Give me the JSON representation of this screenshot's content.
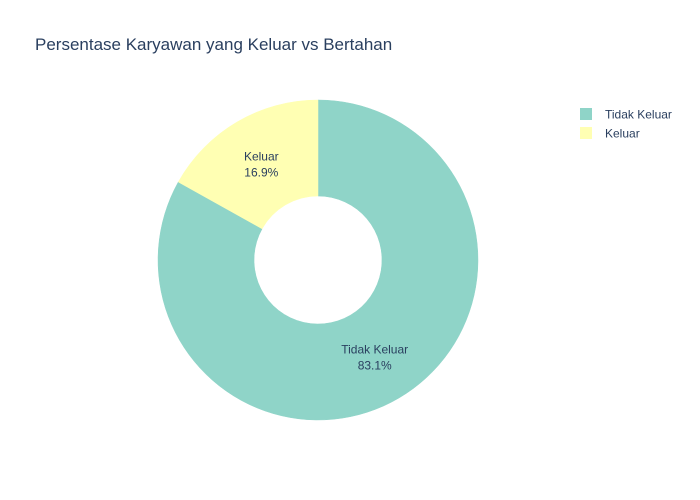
{
  "chart_data": {
    "type": "pie",
    "title": "Persentase Karyawan yang Keluar vs Bertahan",
    "hole": 0.4,
    "start_angle_deg": 0,
    "direction": "clockwise",
    "legend_position": "top-right",
    "slices": [
      {
        "label": "Tidak Keluar",
        "value": 83.1,
        "display": "83.1%",
        "color": "#8fd4c8"
      },
      {
        "label": "Keluar",
        "value": 16.9,
        "display": "16.9%",
        "color": "#ffffb3"
      }
    ]
  }
}
